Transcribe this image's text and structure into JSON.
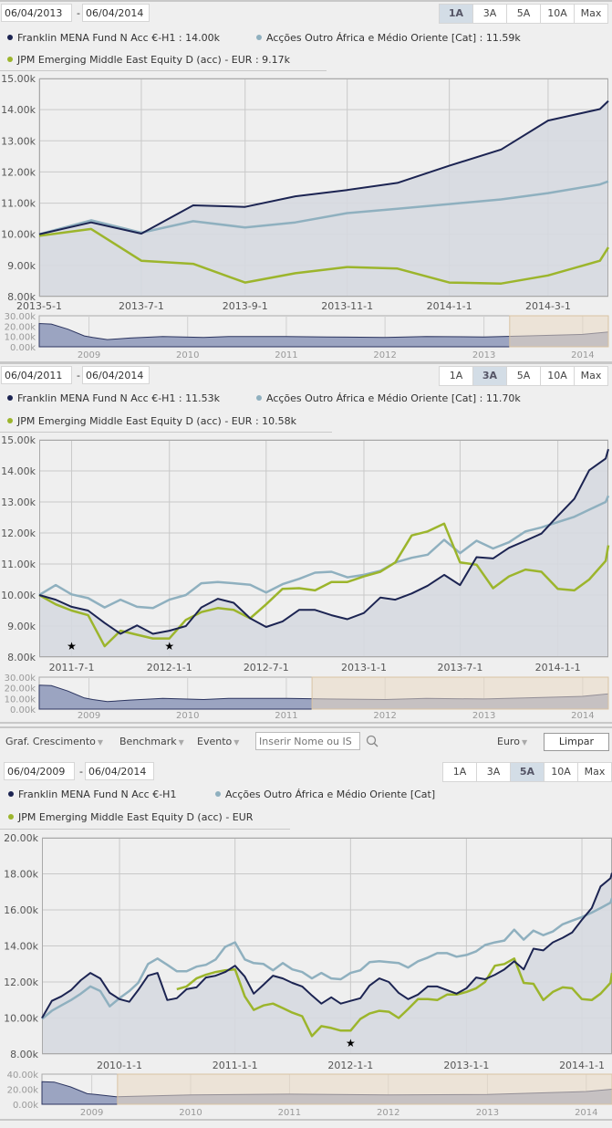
{
  "range_buttons": [
    "1A",
    "3A",
    "5A",
    "10A",
    "Max"
  ],
  "colors": {
    "franklin": "#1c2452",
    "category": "#8fb0bf",
    "jpm": "#9cb52c",
    "area": "#d6d9e0",
    "navigator_fill": "#9ba4c1",
    "navigator_selection": "#ead9c2"
  },
  "toolbar": {
    "growth_label": "Graf. Crescimento",
    "benchmark_label": "Benchmark",
    "event_label": "Evento",
    "search_placeholder": "Inserir Nome ou IS",
    "currency_label": "Euro",
    "clear_label": "Limpar",
    "search_icon": "magnifier-icon",
    "caret_icon": "▼"
  },
  "panels": [
    {
      "start_date": "06/04/2013",
      "separator": "-",
      "end_date": "06/04/2014",
      "active_range": "1A",
      "legend": [
        "Franklin MENA Fund N Acc €-H1 : 14.00k",
        "Acções Outro África e Médio Oriente [Cat] : 11.59k",
        "JPM Emerging Middle East Equity D (acc) - EUR : 9.17k"
      ]
    },
    {
      "start_date": "06/04/2011",
      "separator": "-",
      "end_date": "06/04/2014",
      "active_range": "3A",
      "legend": [
        "Franklin MENA Fund N Acc €-H1 : 11.53k",
        "Acções Outro África e Médio Oriente [Cat] : 11.70k",
        "JPM Emerging Middle East Equity D (acc) - EUR : 10.58k"
      ]
    },
    {
      "start_date": "06/04/2009",
      "separator": "-",
      "end_date": "06/04/2014",
      "active_range": "5A",
      "legend": [
        "Franklin MENA Fund N Acc €-H1",
        "Acções Outro África e Médio Oriente [Cat]",
        "JPM Emerging Middle East Equity D (acc) - EUR"
      ]
    }
  ],
  "chart_data": [
    {
      "type": "line",
      "xlim": [
        "2013-05-01",
        "2014-04-06"
      ],
      "ylim": [
        8,
        15
      ],
      "yticks": [
        "8.00k",
        "9.00k",
        "10.00k",
        "11.00k",
        "12.00k",
        "13.00k",
        "14.00k",
        "15.00k"
      ],
      "xticks": [
        "2013-5-1",
        "2013-7-1",
        "2013-9-1",
        "2013-11-1",
        "2014-1-1",
        "2014-3-1"
      ],
      "grid": true,
      "x": [
        "2013-05-01",
        "2013-06-01",
        "2013-07-01",
        "2013-08-01",
        "2013-09-01",
        "2013-10-01",
        "2013-11-01",
        "2013-12-01",
        "2014-01-01",
        "2014-02-01",
        "2014-03-01",
        "2014-04-01",
        "2014-04-06"
      ],
      "series": [
        {
          "name": "Franklin MENA Fund N Acc €-H1",
          "color": "#1c2452",
          "area": true,
          "values": [
            10.0,
            10.38,
            10.02,
            10.93,
            10.88,
            11.22,
            11.42,
            11.65,
            12.2,
            12.72,
            13.65,
            14.02,
            14.28
          ]
        },
        {
          "name": "Acções Outro África e Médio Oriente [Cat]",
          "color": "#8fb0bf",
          "values": [
            10.0,
            10.45,
            10.05,
            10.42,
            10.22,
            10.38,
            10.68,
            10.82,
            10.97,
            11.12,
            11.32,
            11.6,
            11.7
          ]
        },
        {
          "name": "JPM Emerging Middle East Equity D (acc) - EUR",
          "color": "#9cb52c",
          "values": [
            9.95,
            10.17,
            9.15,
            9.05,
            8.45,
            8.75,
            8.95,
            8.9,
            8.45,
            8.42,
            8.68,
            9.15,
            9.58
          ]
        }
      ],
      "events": [],
      "navigator": {
        "xlim": [
          "2008-07-01",
          "2014-04-06"
        ],
        "ylim": [
          0,
          30
        ],
        "yticks": [
          "0.00k",
          "10.00k",
          "20.00k",
          "30.00k"
        ],
        "xticks": [
          "2009",
          "2010",
          "2011",
          "2012",
          "2013",
          "2014"
        ],
        "selection": [
          "2013-04-06",
          "2014-04-06"
        ],
        "x": [
          "2008-07-01",
          "2008-08-15",
          "2008-10-15",
          "2008-12-15",
          "2009-01-15",
          "2009-03-10",
          "2009-06-01",
          "2009-10-01",
          "2010-03-01",
          "2010-06-01",
          "2011-01-01",
          "2011-06-01",
          "2012-01-01",
          "2012-06-01",
          "2013-01-01",
          "2013-06-01",
          "2014-01-01",
          "2014-04-06"
        ],
        "values": [
          22.5,
          22,
          17,
          10.5,
          9,
          7,
          8.5,
          10,
          9,
          10,
          10,
          9.5,
          9,
          10,
          9.5,
          10.5,
          12,
          14.3
        ]
      }
    },
    {
      "type": "line",
      "xlim": [
        "2011-05-01",
        "2014-04-06"
      ],
      "ylim": [
        8,
        15
      ],
      "yticks": [
        "8.00k",
        "9.00k",
        "10.00k",
        "11.00k",
        "12.00k",
        "13.00k",
        "14.00k",
        "15.00k"
      ],
      "xticks": [
        "2011-7-1",
        "2012-1-1",
        "2012-7-1",
        "2013-1-1",
        "2013-7-1",
        "2014-1-1"
      ],
      "grid": true,
      "x": [
        "2011-05-01",
        "2011-06-01",
        "2011-07-01",
        "2011-08-01",
        "2011-09-01",
        "2011-10-01",
        "2011-11-01",
        "2011-12-01",
        "2012-01-01",
        "2012-02-01",
        "2012-03-01",
        "2012-04-01",
        "2012-05-01",
        "2012-06-01",
        "2012-07-01",
        "2012-08-01",
        "2012-09-01",
        "2012-10-01",
        "2012-11-01",
        "2012-12-01",
        "2013-01-01",
        "2013-02-01",
        "2013-03-01",
        "2013-04-01",
        "2013-05-01",
        "2013-06-01",
        "2013-07-01",
        "2013-08-01",
        "2013-09-01",
        "2013-10-01",
        "2013-11-01",
        "2013-12-01",
        "2014-01-01",
        "2014-02-01",
        "2014-03-01",
        "2014-04-01",
        "2014-04-06"
      ],
      "series": [
        {
          "name": "Franklin MENA Fund N Acc €-H1",
          "color": "#1c2452",
          "area": true,
          "values": [
            10.0,
            9.85,
            9.62,
            9.5,
            9.1,
            8.75,
            9.02,
            8.75,
            8.85,
            9.0,
            9.6,
            9.88,
            9.75,
            9.25,
            8.97,
            9.15,
            9.52,
            9.52,
            9.35,
            9.22,
            9.42,
            9.92,
            9.85,
            10.05,
            10.3,
            10.65,
            10.32,
            11.22,
            11.18,
            11.52,
            11.75,
            11.98,
            12.55,
            13.1,
            14.02,
            14.4,
            14.7
          ]
        },
        {
          "name": "Acções Outro África e Médio Oriente [Cat]",
          "color": "#8fb0bf",
          "values": [
            10.0,
            10.32,
            10.02,
            9.9,
            9.6,
            9.85,
            9.62,
            9.58,
            9.85,
            10.0,
            10.38,
            10.42,
            10.38,
            10.33,
            10.08,
            10.35,
            10.52,
            10.72,
            10.75,
            10.57,
            10.65,
            10.78,
            11.05,
            11.2,
            11.3,
            11.78,
            11.35,
            11.75,
            11.5,
            11.7,
            12.05,
            12.18,
            12.35,
            12.52,
            12.75,
            13.0,
            13.2
          ]
        },
        {
          "name": "JPM Emerging Middle East Equity D (acc) - EUR",
          "color": "#9cb52c",
          "values": [
            10.0,
            9.7,
            9.5,
            9.35,
            8.35,
            8.85,
            8.72,
            8.6,
            8.6,
            9.2,
            9.45,
            9.58,
            9.52,
            9.25,
            9.7,
            10.2,
            10.22,
            10.15,
            10.42,
            10.42,
            10.6,
            10.75,
            11.05,
            11.92,
            12.05,
            12.3,
            11.05,
            10.98,
            10.22,
            10.6,
            10.82,
            10.75,
            10.2,
            10.15,
            10.5,
            11.1,
            11.6
          ]
        }
      ],
      "events": [
        "2011-07-01",
        "2012-01-01"
      ],
      "navigator": {
        "xlim": [
          "2008-07-01",
          "2014-04-06"
        ],
        "ylim": [
          0,
          30
        ],
        "yticks": [
          "0.00k",
          "10.00k",
          "20.00k",
          "30.00k"
        ],
        "xticks": [
          "2009",
          "2010",
          "2011",
          "2012",
          "2013",
          "2014"
        ],
        "selection": [
          "2011-04-06",
          "2014-04-06"
        ],
        "x": [
          "2008-07-01",
          "2008-08-15",
          "2008-10-15",
          "2008-12-15",
          "2009-01-15",
          "2009-03-10",
          "2009-06-01",
          "2009-10-01",
          "2010-03-01",
          "2010-06-01",
          "2011-01-01",
          "2011-06-01",
          "2012-01-01",
          "2012-06-01",
          "2013-01-01",
          "2013-06-01",
          "2014-01-01",
          "2014-04-06"
        ],
        "values": [
          22.5,
          22,
          17,
          10.5,
          9,
          7,
          8.5,
          10,
          9,
          10,
          10,
          9.5,
          9,
          10,
          9.5,
          10.5,
          12,
          14.3
        ]
      }
    },
    {
      "type": "line",
      "xlim": [
        "2009-05-01",
        "2014-04-06"
      ],
      "ylim": [
        8,
        20
      ],
      "yticks": [
        "8.00k",
        "10.00k",
        "12.00k",
        "14.00k",
        "16.00k",
        "18.00k",
        "20.00k"
      ],
      "xticks": [
        "2010-1-1",
        "2011-1-1",
        "2012-1-1",
        "2013-1-1",
        "2014-1-1"
      ],
      "grid": true,
      "x": "monthly 2009-05-01 to 2014-04-01, then 2014-04-06",
      "series": [
        {
          "name": "Franklin MENA Fund N Acc €-H1",
          "color": "#1c2452",
          "area": true,
          "values": [
            10.0,
            10.95,
            11.2,
            11.55,
            12.1,
            12.5,
            12.2,
            11.4,
            11.05,
            10.9,
            11.55,
            12.35,
            12.5,
            11.0,
            11.1,
            11.6,
            11.7,
            12.25,
            12.35,
            12.55,
            12.9,
            12.3,
            11.35,
            11.85,
            12.35,
            12.2,
            11.95,
            11.75,
            11.25,
            10.8,
            11.15,
            10.8,
            10.95,
            11.1,
            11.8,
            12.2,
            12.0,
            11.4,
            11.05,
            11.3,
            11.75,
            11.75,
            11.55,
            11.35,
            11.65,
            12.25,
            12.15,
            12.4,
            12.7,
            13.15,
            12.7,
            13.85,
            13.75,
            14.2,
            14.45,
            14.75,
            15.45,
            16.1,
            17.3,
            17.75,
            18.05
          ]
        },
        {
          "name": "Acções Outro África e Médio Oriente [Cat]",
          "color": "#8fb0bf",
          "values": [
            9.95,
            10.4,
            10.7,
            11.0,
            11.35,
            11.75,
            11.5,
            10.65,
            11.1,
            11.5,
            11.95,
            13.0,
            13.3,
            12.95,
            12.6,
            12.6,
            12.85,
            12.95,
            13.25,
            13.95,
            14.2,
            13.25,
            13.05,
            13.0,
            12.65,
            13.05,
            12.7,
            12.55,
            12.2,
            12.5,
            12.2,
            12.15,
            12.5,
            12.65,
            13.1,
            13.15,
            13.1,
            13.05,
            12.8,
            13.15,
            13.35,
            13.6,
            13.6,
            13.4,
            13.5,
            13.7,
            14.05,
            14.2,
            14.3,
            14.9,
            14.35,
            14.85,
            14.6,
            14.8,
            15.2,
            15.4,
            15.6,
            15.85,
            16.1,
            16.4,
            16.65
          ]
        },
        {
          "name": "JPM Emerging Middle East Equity D (acc) - EUR",
          "color": "#9cb52c",
          "values": [
            null,
            null,
            null,
            null,
            null,
            null,
            null,
            null,
            null,
            null,
            null,
            null,
            null,
            null,
            11.6,
            11.75,
            12.2,
            12.4,
            12.55,
            12.65,
            12.7,
            11.2,
            10.45,
            10.7,
            10.8,
            10.55,
            10.3,
            10.1,
            9.0,
            9.55,
            9.45,
            9.3,
            9.3,
            9.95,
            10.25,
            10.4,
            10.35,
            10.0,
            10.5,
            11.05,
            11.05,
            11.0,
            11.3,
            11.3,
            11.45,
            11.65,
            12.0,
            12.9,
            13.0,
            13.3,
            11.95,
            11.9,
            11.0,
            11.45,
            11.7,
            11.65,
            11.05,
            11.0,
            11.35,
            11.95,
            12.5
          ]
        }
      ],
      "events": [
        "2012-01-01"
      ],
      "navigator": {
        "xlim": [
          "2008-07-01",
          "2014-04-06"
        ],
        "ylim": [
          0,
          40
        ],
        "yticks": [
          "0.00k",
          "20.00k",
          "40.00k"
        ],
        "xticks": [
          "2009",
          "2010",
          "2011",
          "2012",
          "2013",
          "2014"
        ],
        "selection": [
          "2009-04-06",
          "2014-04-06"
        ],
        "x": [
          "2008-07-01",
          "2008-08-15",
          "2008-10-15",
          "2008-12-15",
          "2009-01-15",
          "2009-04-01",
          "2010-01-01",
          "2011-01-01",
          "2012-01-01",
          "2013-01-01",
          "2014-01-01",
          "2014-04-06"
        ],
        "values": [
          30,
          29.5,
          23,
          14,
          13,
          10,
          12.5,
          13.5,
          12.5,
          13,
          17,
          20
        ]
      }
    }
  ]
}
